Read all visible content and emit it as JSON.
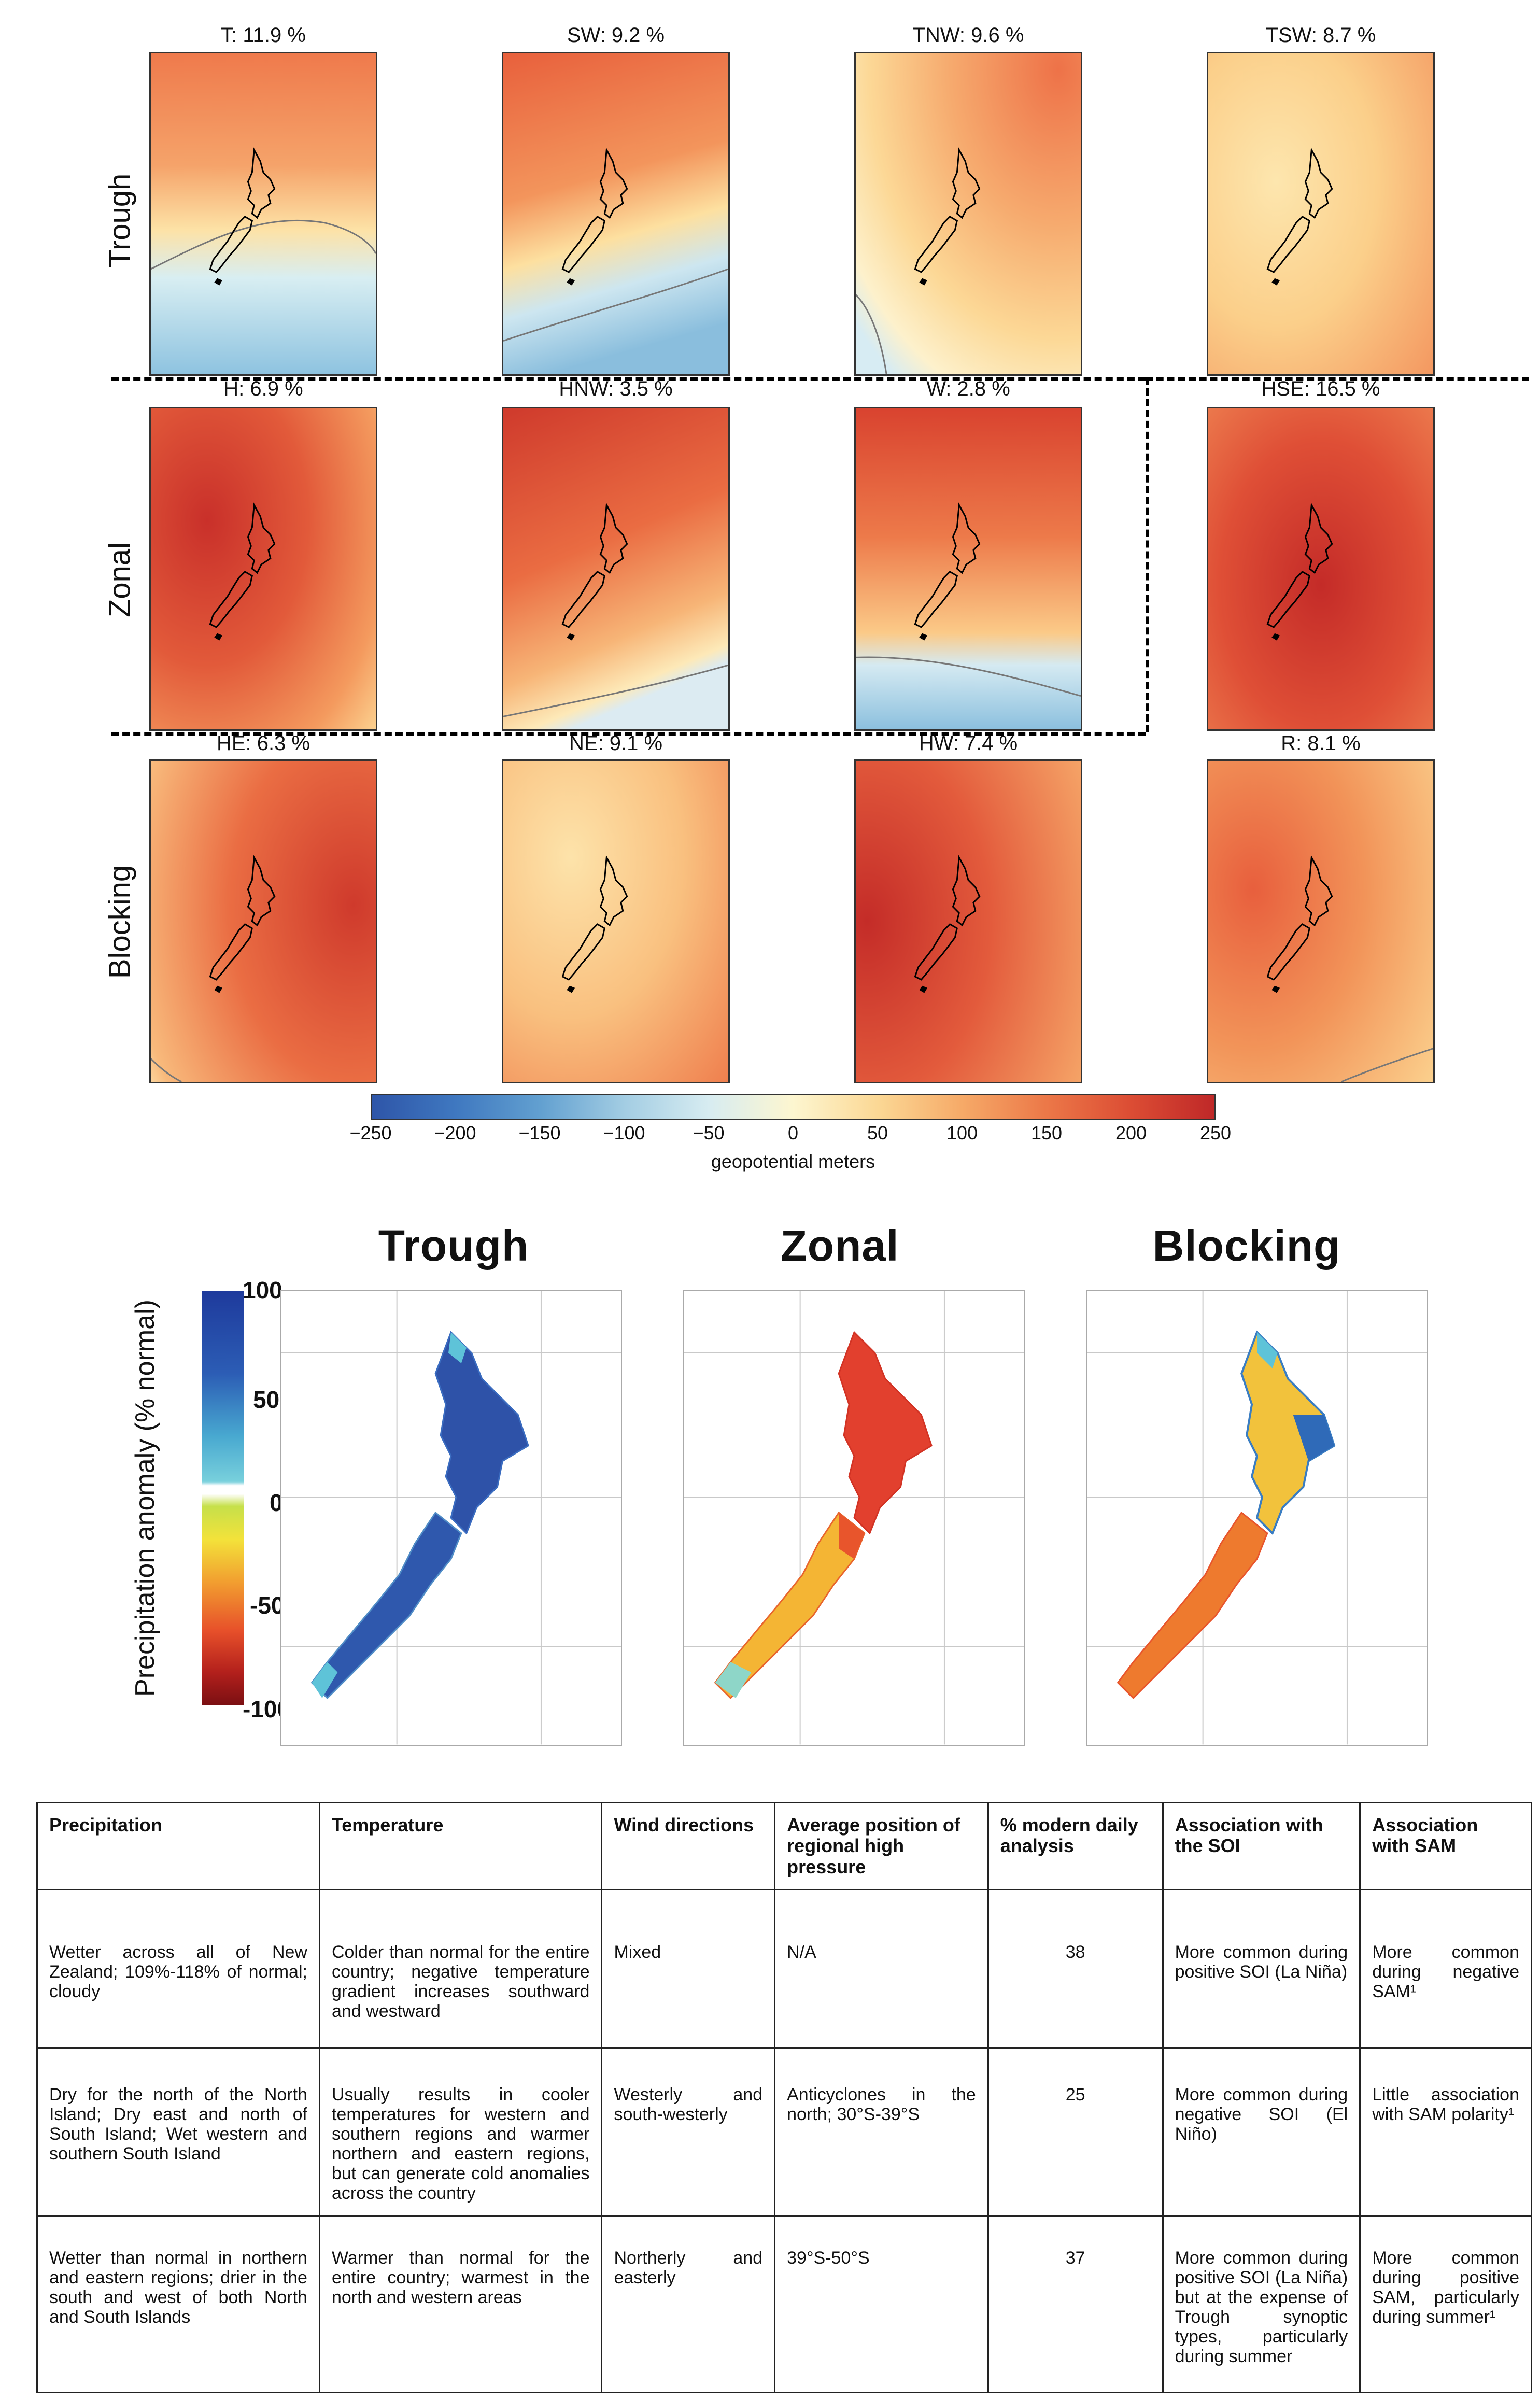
{
  "row_labels": [
    "Trough",
    "Zonal",
    "Blocking"
  ],
  "panels": [
    {
      "title": "T: 11.9 %"
    },
    {
      "title": "SW: 9.2 %"
    },
    {
      "title": "TNW: 9.6 %"
    },
    {
      "title": "TSW: 8.7 %"
    },
    {
      "title": "H: 6.9 %"
    },
    {
      "title": "HNW: 3.5 %"
    },
    {
      "title": "W: 2.8 %"
    },
    {
      "title": "HSE: 16.5 %"
    },
    {
      "title": "HE: 6.3 %"
    },
    {
      "title": "NE: 9.1 %"
    },
    {
      "title": "HW: 7.4 %"
    },
    {
      "title": "R: 8.1 %"
    }
  ],
  "colorbar": {
    "ticks": [
      "−250",
      "−200",
      "−150",
      "−100",
      "−50",
      "0",
      "50",
      "100",
      "150",
      "200",
      "250"
    ],
    "label": "geopotential meters"
  },
  "precip": {
    "titles": [
      "Trough",
      "Zonal",
      "Blocking"
    ],
    "axis_label": "Precipitation anomaly (% normal)",
    "ticks": [
      "100",
      "50",
      "0",
      "-50",
      "-100"
    ]
  },
  "table": {
    "headers": [
      "Precipitation",
      "Temperature",
      "Wind directions",
      "Average position of regional high pressure",
      "% modern daily analysis",
      "Association with the SOI",
      "Association with SAM"
    ],
    "rows": [
      [
        "Wetter across all of New Zealand; 109%-118% of normal; cloudy",
        "Colder than normal for the entire country; negative temperature gradient increases southward and westward",
        "Mixed",
        "N/A",
        "38",
        "More common during positive SOI (La Niña)",
        "More common during negative SAM¹"
      ],
      [
        "Dry for the north of the North Island; Dry east and north of South Island; Wet western and southern South Island",
        "Usually results in cooler temperatures for western and southern regions and warmer northern and eastern regions, but can generate cold anomalies across the country",
        "Westerly and south-westerly",
        "Anticyclones in the north; 30°S-39°S",
        "25",
        "More common during negative SOI (El Niño)",
        "Little association with SAM polarity¹"
      ],
      [
        "Wetter than normal in northern and eastern regions; drier in the south and west of both North and South Islands",
        "Warmer than normal for the entire country; warmest in the north and western areas",
        "Northerly and easterly",
        "39°S-50°S",
        "37",
        "More common during positive SOI (La Niña) but at the expense of Trough synoptic types, particularly during summer",
        "More common during positive SAM, particularly during summer¹"
      ]
    ]
  }
}
